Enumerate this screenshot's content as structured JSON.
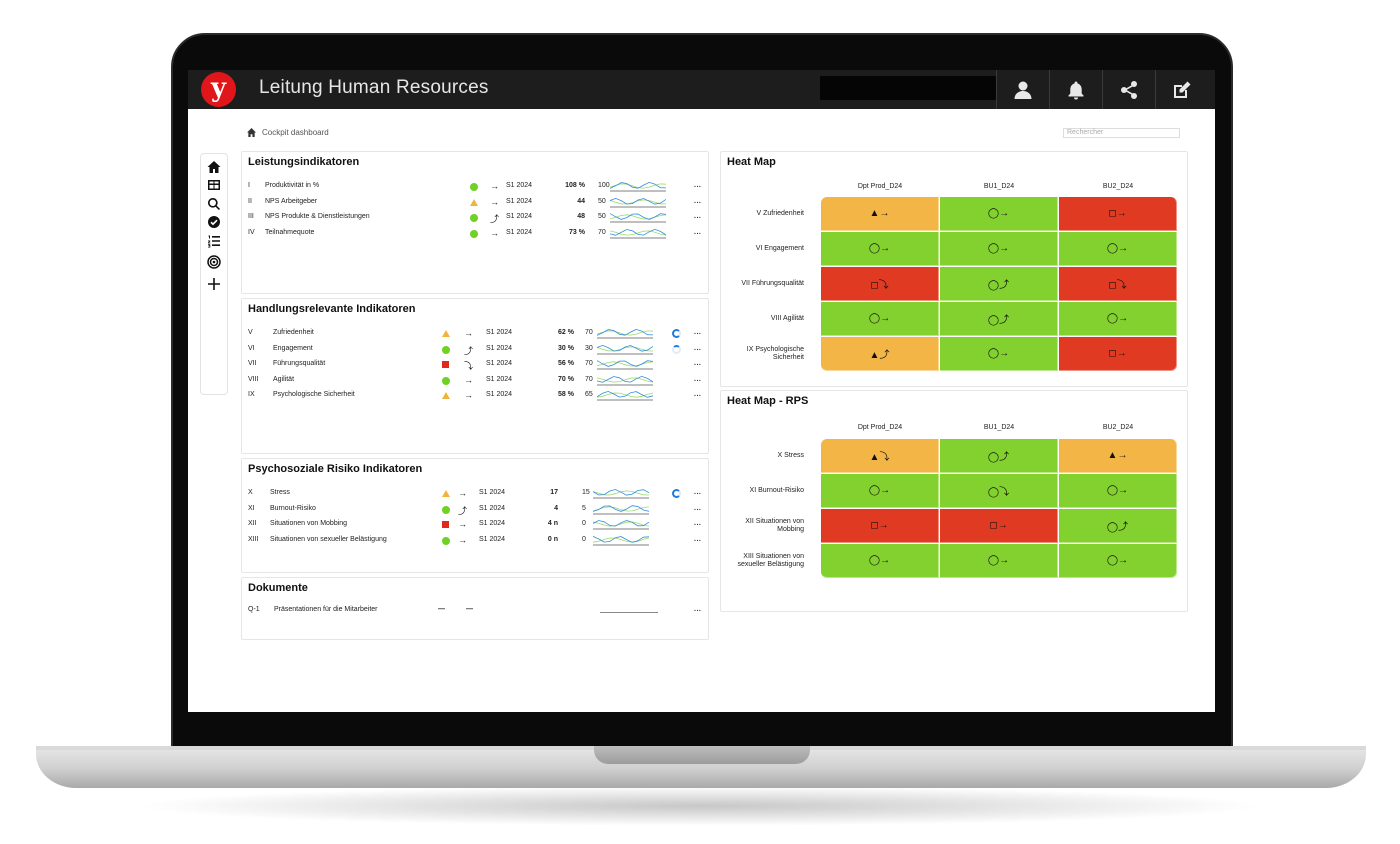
{
  "app": {
    "title": "Leitung Human Resources",
    "logo_letter": "y"
  },
  "topbar": {
    "icons": [
      "user-icon",
      "bell-icon",
      "share-icon",
      "edit-icon"
    ]
  },
  "breadcrumb": {
    "label": "Cockpit dashboard"
  },
  "search": {
    "placeholder": "Rechercher"
  },
  "sidenav": {
    "icons": [
      "home-icon",
      "table-icon",
      "search-icon",
      "check-circle-icon",
      "list-ordered-icon",
      "target-icon",
      "plus-icon"
    ]
  },
  "colors": {
    "green": "#82d12e",
    "red": "#e13a22",
    "orange": "#f2b546",
    "topbar": "#1d1d1d",
    "logo": "#e0161b"
  },
  "panels": {
    "leistung": {
      "title": "Leistungsindikatoren",
      "rows": [
        {
          "num": "I",
          "name": "Produktivität in %",
          "status": "green",
          "trend": "→",
          "period": "S1 2024",
          "value": "108 %",
          "target": "100",
          "more": "..."
        },
        {
          "num": "II",
          "name": "NPS Arbeitgeber",
          "status": "orange",
          "trend": "→",
          "period": "S1 2024",
          "value": "44",
          "target": "50",
          "more": "..."
        },
        {
          "num": "III",
          "name": "NPS Produkte & Dienstleistungen",
          "status": "green",
          "trend": "⤴",
          "period": "S1 2024",
          "value": "48",
          "target": "50",
          "more": "..."
        },
        {
          "num": "IV",
          "name": "Teilnahmequote",
          "status": "green",
          "trend": "→",
          "period": "S1 2024",
          "value": "73 %",
          "target": "70",
          "more": "..."
        }
      ]
    },
    "handlung": {
      "title": "Handlungsrelevante Indikatoren",
      "rows": [
        {
          "num": "V",
          "name": "Zufriedenheit",
          "status": "orange",
          "trend": "→",
          "period": "S1 2024",
          "value": "62 %",
          "target": "70",
          "more": "..."
        },
        {
          "num": "VI",
          "name": "Engagement",
          "status": "green",
          "trend": "⤴",
          "period": "S1 2024",
          "value": "30 %",
          "target": "30",
          "more": "..."
        },
        {
          "num": "VII",
          "name": "Führungsqualität",
          "status": "red",
          "trend": "⤵",
          "period": "S1 2024",
          "value": "56 %",
          "target": "70",
          "more": "..."
        },
        {
          "num": "VIII",
          "name": "Agilität",
          "status": "green",
          "trend": "→",
          "period": "S1 2024",
          "value": "70 %",
          "target": "70",
          "more": "..."
        },
        {
          "num": "IX",
          "name": "Psychologische Sicherheit",
          "status": "orange",
          "trend": "→",
          "period": "S1 2024",
          "value": "58 %",
          "target": "65",
          "more": "..."
        }
      ]
    },
    "psycho": {
      "title": "Psychosoziale Risiko Indikatoren",
      "rows": [
        {
          "num": "X",
          "name": "Stress",
          "status": "orange",
          "trend": "→",
          "period": "S1 2024",
          "value": "17",
          "target": "15",
          "more": "..."
        },
        {
          "num": "XI",
          "name": "Burnout-Risiko",
          "status": "green",
          "trend": "⤴",
          "period": "S1 2024",
          "value": "4",
          "target": "5",
          "more": "..."
        },
        {
          "num": "XII",
          "name": "Situationen von Mobbing",
          "status": "red",
          "trend": "→",
          "period": "S1 2024",
          "value": "4 n",
          "target": "0",
          "more": "..."
        },
        {
          "num": "XIII",
          "name": "Situationen von sexueller Belästigung",
          "status": "green",
          "trend": "→",
          "period": "S1 2024",
          "value": "0 n",
          "target": "0",
          "more": "..."
        }
      ]
    },
    "dokumente": {
      "title": "Dokumente",
      "rows": [
        {
          "num": "Q-1",
          "name": "Präsentationen für die Mitarbeiter",
          "status": "—",
          "trend": "—",
          "more": "..."
        }
      ]
    }
  },
  "heatmap": {
    "title": "Heat Map",
    "columns": [
      "Dpt Prod_D24",
      "BU1_D24",
      "BU2_D24"
    ],
    "rows": [
      {
        "label": "V Zufriedenheit",
        "cells": [
          {
            "color": "orange",
            "text": "▲→"
          },
          {
            "color": "green",
            "text": "◯→"
          },
          {
            "color": "red",
            "text": "◻→"
          }
        ]
      },
      {
        "label": "VI Engagement",
        "cells": [
          {
            "color": "green",
            "text": "◯→"
          },
          {
            "color": "green",
            "text": "◯→"
          },
          {
            "color": "green",
            "text": "◯→"
          }
        ]
      },
      {
        "label": "VII Führungsqualität",
        "cells": [
          {
            "color": "red",
            "text": "◻⤵"
          },
          {
            "color": "green",
            "text": "◯⤴"
          },
          {
            "color": "red",
            "text": "◻⤵"
          }
        ]
      },
      {
        "label": "VIII Agilität",
        "cells": [
          {
            "color": "green",
            "text": "◯→"
          },
          {
            "color": "green",
            "text": "◯⤴"
          },
          {
            "color": "green",
            "text": "◯→"
          }
        ]
      },
      {
        "label": "IX Psychologische Sicherheit",
        "cells": [
          {
            "color": "orange",
            "text": "▲⤴"
          },
          {
            "color": "green",
            "text": "◯→"
          },
          {
            "color": "red",
            "text": "◻→"
          }
        ]
      }
    ]
  },
  "heatmap_rps": {
    "title": "Heat Map - RPS",
    "columns": [
      "Dpt Prod_D24",
      "BU1_D24",
      "BU2_D24"
    ],
    "rows": [
      {
        "label": "X Stress",
        "cells": [
          {
            "color": "orange",
            "text": "▲⤵"
          },
          {
            "color": "green",
            "text": "◯⤴"
          },
          {
            "color": "orange",
            "text": "▲→"
          }
        ]
      },
      {
        "label": "XI Burnout-Risiko",
        "cells": [
          {
            "color": "green",
            "text": "◯→"
          },
          {
            "color": "green",
            "text": "◯⤵"
          },
          {
            "color": "green",
            "text": "◯→"
          }
        ]
      },
      {
        "label": "XII Situationen von Mobbing",
        "cells": [
          {
            "color": "red",
            "text": "◻→"
          },
          {
            "color": "red",
            "text": "◻→"
          },
          {
            "color": "green",
            "text": "◯⤴"
          }
        ]
      },
      {
        "label": "XIII Situationen von sexueller Belästigung",
        "cells": [
          {
            "color": "green",
            "text": "◯→"
          },
          {
            "color": "green",
            "text": "◯→"
          },
          {
            "color": "green",
            "text": "◯→"
          }
        ]
      }
    ]
  }
}
